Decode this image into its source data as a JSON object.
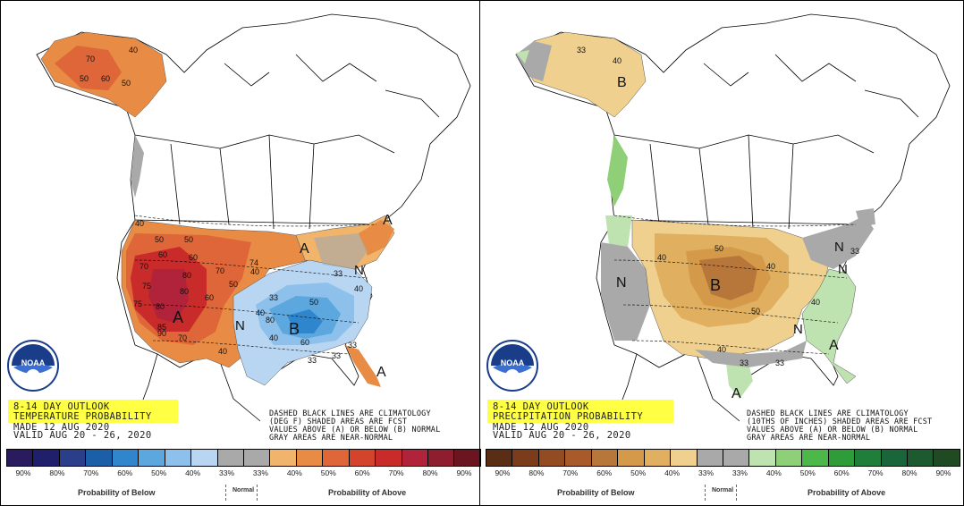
{
  "panels": [
    {
      "title_line1": "8-14 DAY OUTLOOK",
      "title_line2": "TEMPERATURE PROBABILITY",
      "made": "MADE   12 AUG 2020",
      "valid": "VALID  AUG 20 - 26, 2020",
      "note": [
        "DASHED BLACK LINES ARE CLIMATOLOGY",
        "(DEG F) SHADED AREAS ARE FCST",
        "VALUES ABOVE (A) OR BELOW (B) NORMAL",
        "GRAY AREAS ARE NEAR-NORMAL"
      ],
      "map_labels": [
        "A",
        "A",
        "A",
        "A",
        "B",
        "N",
        "N",
        "40",
        "50",
        "60",
        "70",
        "80",
        "90",
        "75",
        "60",
        "50",
        "40",
        "33",
        "50",
        "60",
        "40",
        "50",
        "70",
        "80",
        "75",
        "85",
        "80",
        "70",
        "60",
        "50",
        "40",
        "70",
        "80",
        "33",
        "40",
        "33",
        "60",
        "50",
        "33",
        "40",
        "74",
        "40",
        "33"
      ],
      "scale_colors": [
        "#2a1a5e",
        "#1f1f6b",
        "#2b3e8a",
        "#1b5fa8",
        "#2f86cc",
        "#5da7df",
        "#8dc0ea",
        "#b8d6f2",
        "#a9a9a9",
        "#a9a9a9",
        "#f0b46a",
        "#e88c45",
        "#de6638",
        "#d4442d",
        "#c92a2a",
        "#b0233a",
        "#8e1e2e",
        "#6a1520"
      ],
      "ticks": [
        "90%",
        "80%",
        "70%",
        "60%",
        "50%",
        "40%",
        "33%",
        "33%",
        "40%",
        "50%",
        "60%",
        "70%",
        "80%",
        "90%"
      ],
      "below_caption": "Probability of Below",
      "normal_caption": "Normal",
      "above_caption": "Probability of Above"
    },
    {
      "title_line1": "8-14 DAY OUTLOOK",
      "title_line2": "PRECIPITATION PROBABILITY",
      "made": "MADE   12 AUG 2020",
      "valid": "VALID  AUG 20 - 26, 2020",
      "note": [
        "DASHED BLACK LINES ARE CLIMATOLOGY",
        "(10THS OF INCHES) SHADED AREAS ARE FCST",
        "VALUES ABOVE (A) OR BELOW (B) NORMAL",
        "GRAY AREAS ARE NEAR-NORMAL"
      ],
      "map_labels": [
        "B",
        "40",
        "33",
        "B",
        "N",
        "N",
        "N",
        "N",
        "A",
        "A",
        "50",
        "40",
        "33",
        "40",
        "33",
        "40",
        "50",
        "40",
        "33"
      ],
      "scale_colors": [
        "#5a2e14",
        "#7a3c1a",
        "#934b22",
        "#a85a2a",
        "#b8773a",
        "#d49a4a",
        "#e0b060",
        "#f0d08f",
        "#a9a9a9",
        "#a9a9a9",
        "#bfe3b0",
        "#8fcf78",
        "#4db84a",
        "#2f9c3a",
        "#1f7f3a",
        "#19663a",
        "#1d5a30",
        "#1f4a22"
      ],
      "ticks": [
        "90%",
        "80%",
        "70%",
        "60%",
        "50%",
        "40%",
        "33%",
        "33%",
        "40%",
        "50%",
        "60%",
        "70%",
        "80%",
        "90%"
      ],
      "below_caption": "Probability of Below",
      "normal_caption": "Normal",
      "above_caption": "Probability of Above"
    }
  ],
  "logo_text": "NOAA",
  "colors": {
    "above_light": "#f0b46a",
    "above_mid": "#e88c45",
    "above_dark": "#de6638",
    "above_red": "#d4442d",
    "above_deep": "#c92a2a",
    "above_max": "#b0233a",
    "below_light": "#b8d6f2",
    "below_mid": "#8dc0ea",
    "below_dark": "#5da7df",
    "below_deep": "#2f86cc",
    "near_normal": "#a9a9a9",
    "dry_light": "#f0d08f",
    "dry_mid": "#e0b060",
    "dry_dark": "#d49a4a",
    "dry_deep": "#b8773a",
    "wet_light": "#bfe3b0",
    "wet_mid": "#8fcf78",
    "title_yellow": "#ffff44"
  }
}
